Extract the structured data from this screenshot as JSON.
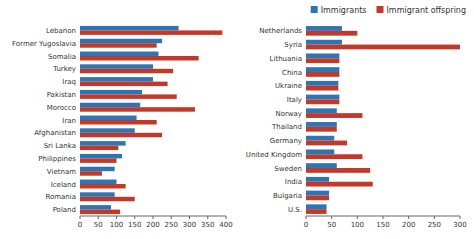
{
  "chart_data": [
    {
      "type": "bar",
      "orientation": "horizontal",
      "grid": false,
      "legend": "upper right",
      "categories": [
        "Lebanon",
        "Former Yugoslavia",
        "Somalia",
        "Turkey",
        "Iraq",
        "Pakistan",
        "Morocco",
        "Iran",
        "Afghanistan",
        "Sri Lanka",
        "Philippines",
        "Vietnam",
        "Iceland",
        "Romania",
        "Poland"
      ],
      "series": [
        {
          "name": "Immigrants",
          "color": "#2E75B6",
          "values": [
            270,
            225,
            215,
            200,
            200,
            170,
            165,
            155,
            150,
            125,
            115,
            95,
            100,
            95,
            85
          ]
        },
        {
          "name": "Immigrant offspring",
          "color": "#C0392B",
          "values": [
            390,
            210,
            325,
            255,
            240,
            265,
            315,
            210,
            225,
            105,
            100,
            60,
            125,
            150,
            110
          ]
        }
      ],
      "xlim": [
        0,
        400
      ],
      "xticks": [
        0,
        50,
        100,
        150,
        200,
        250,
        300,
        350,
        400
      ]
    },
    {
      "type": "bar",
      "orientation": "horizontal",
      "grid": false,
      "categories": [
        "Netherlands",
        "Syria",
        "Lithuania",
        "China",
        "Ukraine",
        "Italy",
        "Norway",
        "Thailand",
        "Germany",
        "United Kingdom",
        "Sweden",
        "India",
        "Bulgaria",
        "U.S."
      ],
      "series": [
        {
          "color": "#2E75B6",
          "values": [
            70,
            70,
            65,
            65,
            63,
            65,
            60,
            60,
            55,
            55,
            60,
            45,
            45,
            40
          ]
        },
        {
          "color": "#C0392B",
          "values": [
            100,
            300,
            65,
            65,
            63,
            65,
            110,
            60,
            80,
            110,
            125,
            130,
            45,
            40
          ]
        }
      ],
      "xlim": [
        0,
        300
      ],
      "xticks": [
        0,
        50,
        100,
        150,
        200,
        250,
        300
      ]
    }
  ]
}
